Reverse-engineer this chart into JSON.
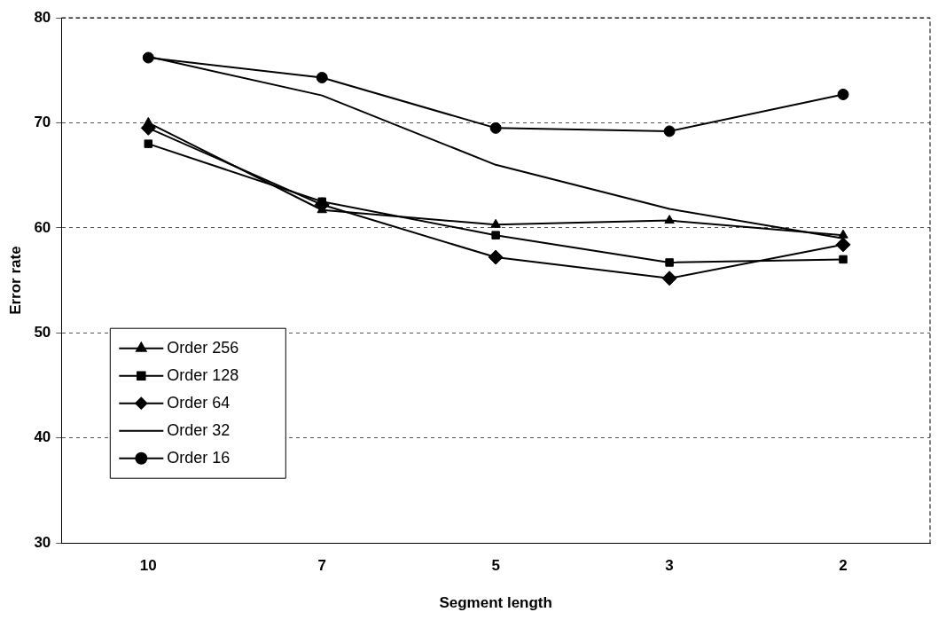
{
  "chart_data": {
    "type": "line",
    "xlabel": "Segment length",
    "ylabel": "Error rate",
    "categories": [
      "10",
      "7",
      "5",
      "3",
      "2"
    ],
    "series": [
      {
        "name": "Order 256",
        "color": "#000000",
        "marker": "triangle",
        "values": [
          70.0,
          61.7,
          60.3,
          60.7,
          59.3
        ]
      },
      {
        "name": "Order 128",
        "color": "#000000",
        "marker": "square",
        "values": [
          68.0,
          62.5,
          59.3,
          56.7,
          57.0
        ]
      },
      {
        "name": "Order 64",
        "color": "#000000",
        "marker": "diamond",
        "values": [
          69.5,
          62.2,
          57.2,
          55.2,
          58.4
        ]
      },
      {
        "name": "Order 32",
        "color": "#000000",
        "marker": "none",
        "values": [
          76.3,
          72.6,
          66.0,
          61.8,
          59.0
        ]
      },
      {
        "name": "Order 16",
        "color": "#000000",
        "marker": "circle",
        "values": [
          76.2,
          74.3,
          69.5,
          69.2,
          72.7
        ]
      }
    ],
    "ylim": [
      30,
      80
    ],
    "yticks": [
      30,
      40,
      50,
      60,
      70,
      80
    ],
    "grid": "y",
    "legend": "bottom left",
    "line_style": "solid"
  }
}
